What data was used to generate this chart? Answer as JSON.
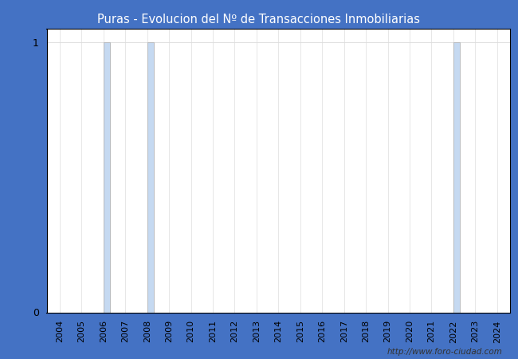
{
  "title": "Puras - Evolucion del Nº de Transacciones Inmobiliarias",
  "title_bg_color": "#4472C4",
  "title_text_color": "white",
  "ylim": [
    0,
    1.05
  ],
  "yticks": [
    0,
    1
  ],
  "years": [
    2004,
    2005,
    2006,
    2007,
    2008,
    2009,
    2010,
    2011,
    2012,
    2013,
    2014,
    2015,
    2016,
    2017,
    2018,
    2019,
    2020,
    2021,
    2022,
    2023,
    2024
  ],
  "nuevas": [
    0,
    0,
    0,
    0,
    0,
    0,
    0,
    0,
    0,
    0,
    0,
    0,
    0,
    0,
    0,
    0,
    0,
    0,
    0,
    0,
    0
  ],
  "usadas": [
    0,
    0,
    1,
    0,
    1,
    0,
    0,
    0,
    0,
    0,
    0,
    0,
    0,
    0,
    0,
    0,
    0,
    0,
    1,
    0,
    0
  ],
  "color_nuevas": "#e8e8e8",
  "color_usadas": "#c5d9f1",
  "grid_color": "#dddddd",
  "fig_bg_color": "#4472C4",
  "plot_bg_color": "white",
  "watermark": "http://www.foro-ciudad.com",
  "bar_width": 0.3
}
